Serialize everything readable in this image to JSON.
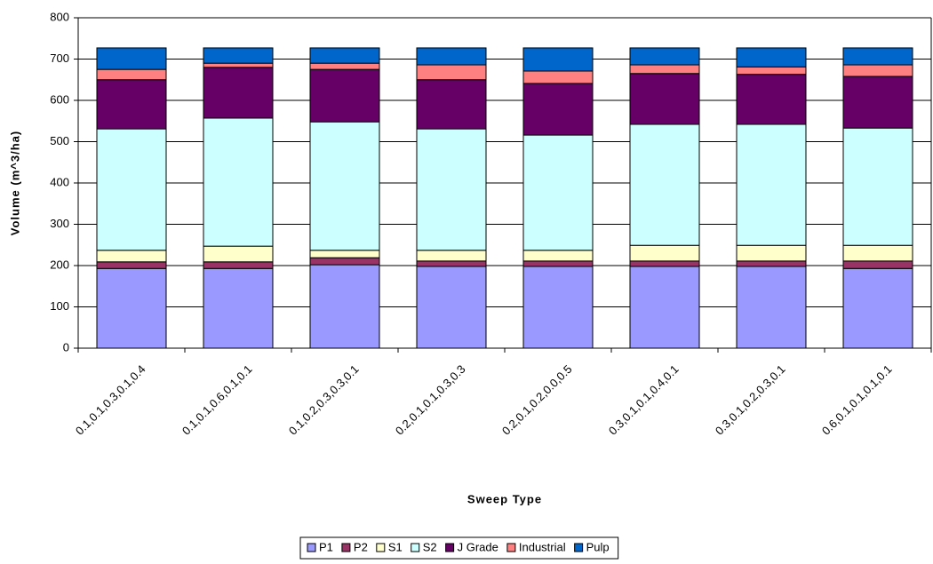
{
  "chart_data": {
    "type": "stacked_bar",
    "x_label": "Sweep Type",
    "y_label": "Volume (m^3/ha)",
    "categories": [
      "0.1,0.1,0.3,0.1,0.4",
      "0.1,0.1,0.6,0.1,0.1",
      "0.1,0.2,0.3,0.3,0.1",
      "0.2,0.1,0.1,0.3,0.3",
      "0.2,0.1,0.2,0.0,0.5",
      "0.3,0.1,0.1,0.4,0.1",
      "0.3,0.1,0.2,0.3,0.1",
      "0.6,0.1,0.1,0.1,0.1"
    ],
    "series": [
      {
        "name": "P1",
        "color": "#9999ff",
        "values": [
          193,
          193,
          202,
          198,
          198,
          198,
          198,
          193
        ]
      },
      {
        "name": "P2",
        "color": "#993366",
        "values": [
          16,
          16,
          17,
          13,
          13,
          13,
          13,
          18
        ]
      },
      {
        "name": "S1",
        "color": "#ffffcc",
        "values": [
          28,
          38,
          18,
          26,
          26,
          38,
          38,
          38
        ]
      },
      {
        "name": "S2",
        "color": "#ccffff",
        "values": [
          294,
          310,
          311,
          294,
          279,
          293,
          293,
          284
        ]
      },
      {
        "name": "J Grade",
        "color": "#660066",
        "values": [
          119,
          123,
          127,
          119,
          125,
          123,
          121,
          125
        ]
      },
      {
        "name": "Industrial",
        "color": "#ff8080",
        "values": [
          25,
          10,
          15,
          36,
          30,
          21,
          18,
          28
        ]
      },
      {
        "name": "Pulp",
        "color": "#0066cc",
        "values": [
          52,
          37,
          37,
          41,
          56,
          41,
          46,
          41
        ]
      }
    ],
    "ylim": [
      0,
      800
    ],
    "yticks": [
      0,
      100,
      200,
      300,
      400,
      500,
      600,
      700,
      800
    ],
    "grid": true
  }
}
